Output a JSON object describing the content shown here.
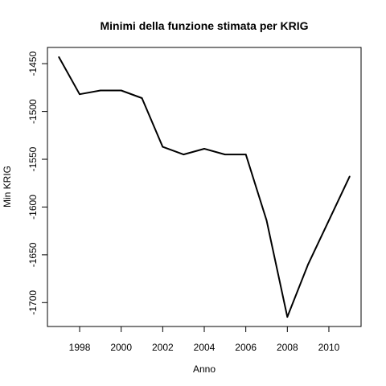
{
  "chart_data": {
    "type": "line",
    "title": "Minimi della funzione stimata per KRIG",
    "xlabel": "Anno",
    "ylabel": "Min KRIG",
    "x": [
      1997,
      1998,
      1999,
      2000,
      2001,
      2002,
      2003,
      2004,
      2005,
      2006,
      2007,
      2008,
      2009,
      2010,
      2011
    ],
    "series": [
      {
        "values": [
          -1443,
          -1482,
          -1478,
          -1478,
          -1486,
          -1537,
          -1545,
          -1539,
          -1545,
          -1545,
          -1614,
          -1715,
          -1660,
          -1614,
          -1568
        ]
      }
    ],
    "xticks": [
      1998,
      2000,
      2002,
      2004,
      2006,
      2008,
      2010
    ],
    "yticks": [
      -1700,
      -1650,
      -1600,
      -1550,
      -1500,
      -1450
    ],
    "xlim": [
      1996.45,
      2011.55
    ],
    "ylim": [
      -1725,
      -1433
    ],
    "grid": false,
    "line_color": "#000000"
  }
}
